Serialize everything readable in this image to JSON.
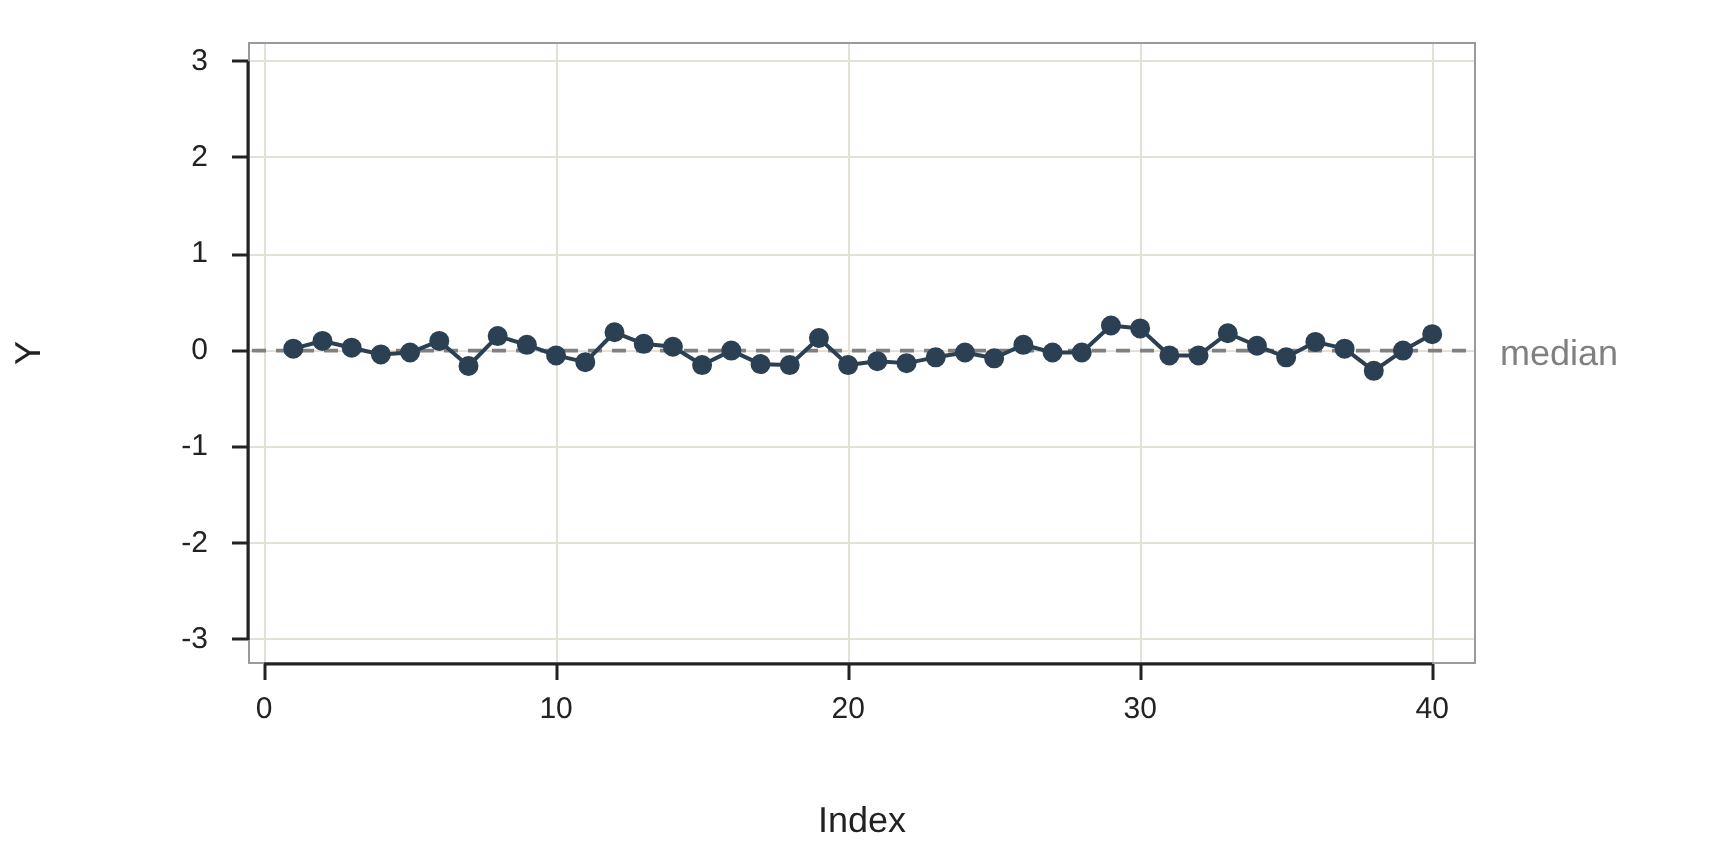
{
  "chart_data": {
    "type": "line",
    "xlabel": "Index",
    "ylabel": "Y",
    "x": [
      1,
      2,
      3,
      4,
      5,
      6,
      7,
      8,
      9,
      10,
      11,
      12,
      13,
      14,
      15,
      16,
      17,
      18,
      19,
      20,
      21,
      22,
      23,
      24,
      25,
      26,
      27,
      28,
      29,
      30,
      31,
      32,
      33,
      34,
      35,
      36,
      37,
      38,
      39,
      40
    ],
    "series": [
      {
        "color": "#2b4052",
        "values": [
          0.02,
          0.1,
          0.03,
          -0.04,
          -0.02,
          0.1,
          -0.16,
          0.15,
          0.06,
          -0.05,
          -0.12,
          0.19,
          0.07,
          0.04,
          -0.15,
          0.0,
          -0.14,
          -0.15,
          0.13,
          -0.15,
          -0.11,
          -0.13,
          -0.07,
          -0.02,
          -0.08,
          0.06,
          -0.02,
          -0.02,
          0.26,
          0.23,
          -0.05,
          -0.05,
          0.18,
          0.05,
          -0.07,
          0.09,
          0.02,
          -0.21,
          0.0,
          0.17
        ]
      }
    ],
    "xlim": [
      -0.55,
      41.5
    ],
    "ylim": [
      -3.25,
      3.2
    ],
    "xticks": [
      0,
      10,
      20,
      30,
      40
    ],
    "yticks": [
      -3,
      -2,
      -1,
      0,
      1,
      2,
      3
    ],
    "grid": true,
    "marker": "circle",
    "line_style": "solid",
    "ref_lines": [
      {
        "axis": "y",
        "value": 0,
        "label": "median",
        "color": "#808080",
        "line_style": "dashed"
      }
    ]
  }
}
